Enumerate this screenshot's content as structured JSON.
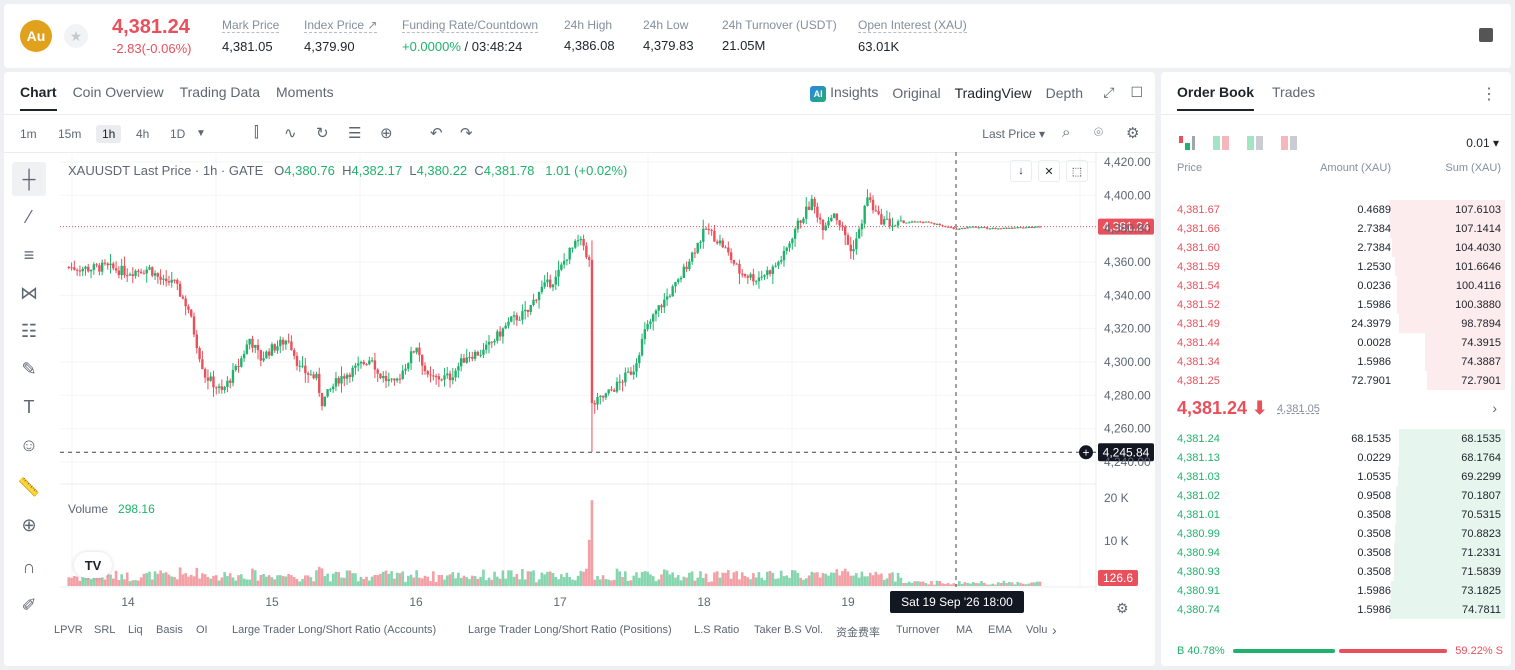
{
  "header": {
    "coin_badge": "Au",
    "last_price": "4,381.24",
    "change": "-2.83(-0.06%)",
    "stats": [
      {
        "label": "Mark Price",
        "value": "4,381.05"
      },
      {
        "label": "Index Price ↗",
        "value": "4,379.90"
      },
      {
        "label": "Funding Rate/Countdown",
        "value_green": "+0.0000%",
        "value_rest": " / 03:48:24"
      },
      {
        "label": "24h High",
        "value": "4,386.08"
      },
      {
        "label": "24h Low",
        "value": "4,379.83"
      },
      {
        "label": "24h Turnover (USDT)",
        "value": "21.05M"
      },
      {
        "label": "Open Interest (XAU)",
        "value": "63.01K"
      }
    ]
  },
  "chart_tabs": [
    "Chart",
    "Coin Overview",
    "Trading Data",
    "Moments"
  ],
  "view_tabs": {
    "insights": "Insights",
    "original": "Original",
    "tradingview": "TradingView",
    "depth": "Depth"
  },
  "timeframes": [
    "1m",
    "15m",
    "1h",
    "4h",
    "1D"
  ],
  "price_type": "Last Price",
  "legend": {
    "symbol": "XAUUSDT Last Price · 1h · GATE",
    "o": "4,380.76",
    "h": "4,382.17",
    "l": "4,380.22",
    "c": "4,381.78",
    "chg": "1.01 (+0.02%)",
    "volume_label": "Volume",
    "volume_value": "298.16"
  },
  "chart_data": {
    "type": "candlestick",
    "price_axis": [
      "4,420.00",
      "4,400.00",
      "4,380.00",
      "4,360.00",
      "4,340.00",
      "4,320.00",
      "4,300.00",
      "4,280.00",
      "4,260.00",
      "4,240.00"
    ],
    "volume_axis": [
      "20 K",
      "10 K"
    ],
    "x_ticks": [
      "14",
      "15",
      "16",
      "17",
      "18",
      "19"
    ],
    "last_price_marker": "4,381.24",
    "crosshair_price": "4,245.84",
    "crosshair_time": "Sat 19 Sep '26   18:00",
    "volume_marker": "126.6",
    "ylim": [
      4240,
      4420
    ]
  },
  "indicators": [
    "LPVR",
    "SRL",
    "Liq",
    "Basis",
    "OI",
    "Large Trader Long/Short Ratio (Accounts)",
    "Large Trader Long/Short Ratio (Positions)",
    "L.S Ratio",
    "Taker B.S Vol.",
    "资金费率",
    "Turnover",
    "MA",
    "EMA",
    "Volu"
  ],
  "orderbook": {
    "tabs": [
      "Order Book",
      "Trades"
    ],
    "tick_size": "0.01 ▾",
    "headers": {
      "price": "Price",
      "amount": "Amount (XAU)",
      "sum": "Sum (XAU)"
    },
    "asks": [
      {
        "price": "4,381.67",
        "amount": "0.4689",
        "sum": "107.6103",
        "depth": 1.0
      },
      {
        "price": "4,381.66",
        "amount": "2.7384",
        "sum": "107.1414",
        "depth": 0.995
      },
      {
        "price": "4,381.60",
        "amount": "2.7384",
        "sum": "104.4030",
        "depth": 0.97
      },
      {
        "price": "4,381.59",
        "amount": "1.2530",
        "sum": "101.6646",
        "depth": 0.945
      },
      {
        "price": "4,381.54",
        "amount": "0.0236",
        "sum": "100.4116",
        "depth": 0.933
      },
      {
        "price": "4,381.52",
        "amount": "1.5986",
        "sum": "100.3880",
        "depth": 0.933
      },
      {
        "price": "4,381.49",
        "amount": "24.3979",
        "sum": "98.7894",
        "depth": 0.918
      },
      {
        "price": "4,381.44",
        "amount": "0.0028",
        "sum": "74.3915",
        "depth": 0.691
      },
      {
        "price": "4,381.34",
        "amount": "1.5986",
        "sum": "74.3887",
        "depth": 0.691
      },
      {
        "price": "4,381.25",
        "amount": "72.7901",
        "sum": "72.7901",
        "depth": 0.676
      }
    ],
    "mid_price": "4,381.24 ⬇",
    "mid_mark": "4,381.05",
    "bids": [
      {
        "price": "4,381.24",
        "amount": "68.1535",
        "sum": "68.1535",
        "depth": 0.911
      },
      {
        "price": "4,381.13",
        "amount": "0.0229",
        "sum": "68.1764",
        "depth": 0.912
      },
      {
        "price": "4,381.03",
        "amount": "1.0535",
        "sum": "69.2299",
        "depth": 0.926
      },
      {
        "price": "4,381.02",
        "amount": "0.9508",
        "sum": "70.1807",
        "depth": 0.938
      },
      {
        "price": "4,381.01",
        "amount": "0.3508",
        "sum": "70.5315",
        "depth": 0.943
      },
      {
        "price": "4,380.99",
        "amount": "0.3508",
        "sum": "70.8823",
        "depth": 0.948
      },
      {
        "price": "4,380.94",
        "amount": "0.3508",
        "sum": "71.2331",
        "depth": 0.953
      },
      {
        "price": "4,380.93",
        "amount": "0.3508",
        "sum": "71.5839",
        "depth": 0.957
      },
      {
        "price": "4,380.91",
        "amount": "1.5986",
        "sum": "73.1825",
        "depth": 0.979
      },
      {
        "price": "4,380.74",
        "amount": "1.5986",
        "sum": "74.7811",
        "depth": 1.0
      }
    ],
    "buy_ratio": "B  40.78%",
    "sell_ratio": "59.22%  S"
  },
  "colors": {
    "up": "#20b26c",
    "down": "#e8505b",
    "up_bg": "#e6f6ee",
    "down_bg": "#fdecee"
  }
}
